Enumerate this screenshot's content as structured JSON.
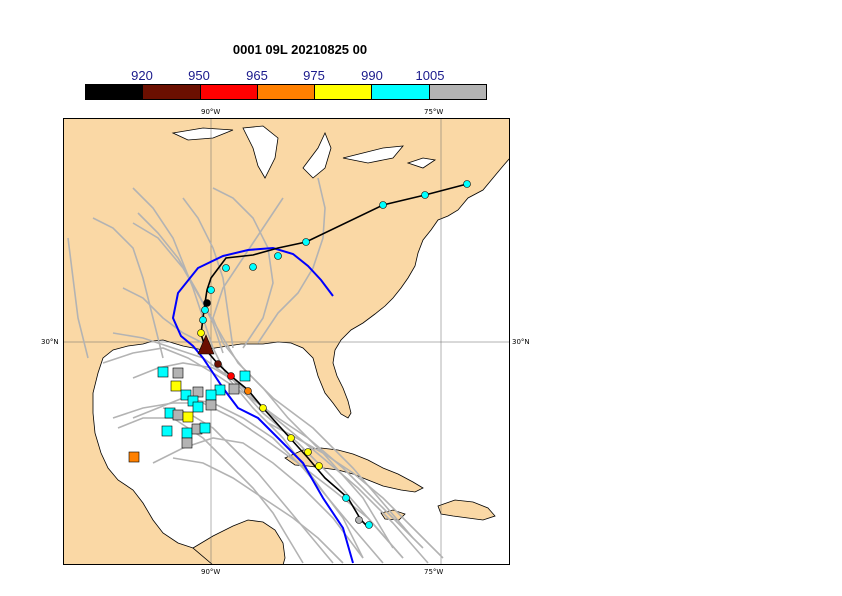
{
  "title": "0001 09L 20210825 00",
  "colorbar": {
    "labels": [
      "920",
      "950",
      "965",
      "975",
      "990",
      "1005"
    ],
    "colors": [
      "#000000",
      "#6b0f00",
      "#ff0000",
      "#ff8000",
      "#ffff00",
      "#00ffff",
      "#b3b3b3"
    ]
  },
  "map": {
    "land_color": "#fad8a5",
    "sea_color": "#ffffff",
    "grid_labels": {
      "lon_90_top": "90°W",
      "lon_75_top": "75°W",
      "lon_90_bottom": "90°W",
      "lon_75_bottom": "75°W",
      "lat_30_left": "30°N",
      "lat_30_right": "30°N"
    }
  }
}
